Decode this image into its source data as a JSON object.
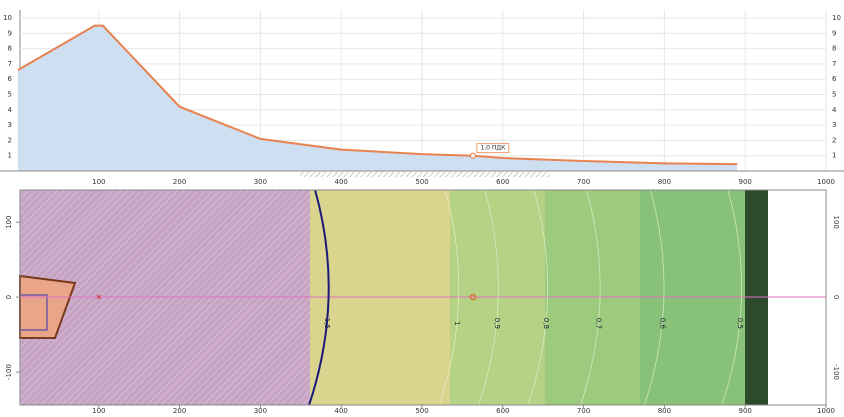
{
  "chart_data": [
    {
      "type": "area",
      "x": [
        0,
        95,
        105,
        200,
        300,
        400,
        500,
        563,
        600,
        700,
        800,
        890
      ],
      "values": [
        6.6,
        9.5,
        9.5,
        4.2,
        2.1,
        1.4,
        1.1,
        1.0,
        0.85,
        0.65,
        0.5,
        0.45
      ],
      "color": "#e8824f",
      "fill": "#cfdff2",
      "xlim": [
        0,
        1000
      ],
      "xticks": [
        100,
        200,
        300,
        400,
        500,
        600,
        700,
        800,
        900,
        1000
      ],
      "ylim": [
        0,
        10
      ],
      "yticks": [
        1,
        2,
        3,
        4,
        5,
        6,
        7,
        8,
        9,
        10
      ],
      "annotation": {
        "text": "1,0 ПДК",
        "x": 563,
        "y": 1.0
      }
    },
    {
      "type": "contour_map",
      "xlim": [
        0,
        1000
      ],
      "xticks": [
        100,
        200,
        300,
        400,
        500,
        600,
        700,
        800,
        900,
        1000
      ],
      "ylim": [
        -144,
        143
      ],
      "yticks": [
        -100,
        0,
        100
      ],
      "source": {
        "x": 100,
        "y": 0
      },
      "marker": {
        "x": 563,
        "y": 0
      },
      "contours": [
        {
          "label": "1,5",
          "x": 385,
          "color": "#1a1a7a"
        },
        {
          "label": "1",
          "x": 546,
          "color": "#e8f0d0"
        },
        {
          "label": "0,9",
          "x": 595,
          "color": "#e0f0d0"
        },
        {
          "label": "0,8",
          "x": 656,
          "color": "#e0f0d0"
        },
        {
          "label": "0,7",
          "x": 721,
          "color": "#e0f0d0"
        },
        {
          "label": "0,6",
          "x": 800,
          "color": "#e0f0d0"
        },
        {
          "label": "0,5",
          "x": 896,
          "color": "#e0f0d0"
        }
      ]
    }
  ]
}
